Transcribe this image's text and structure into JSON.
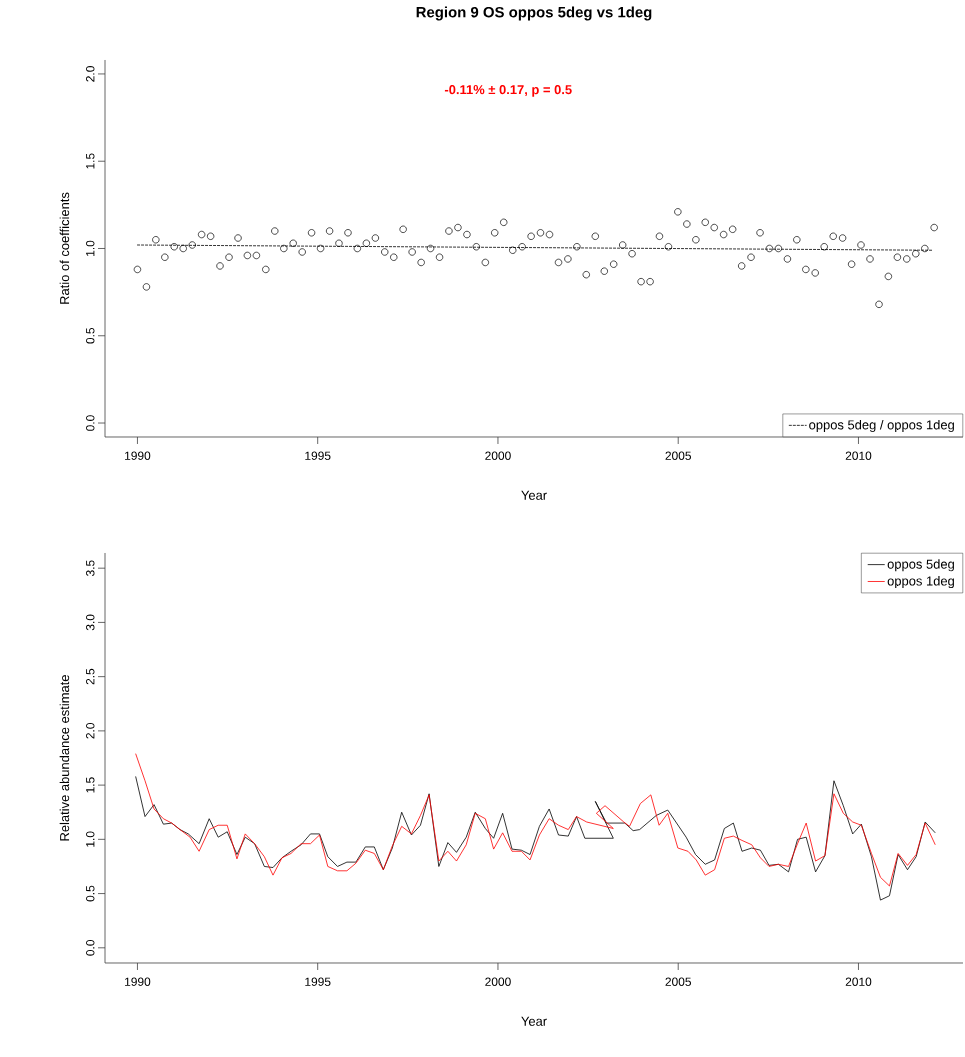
{
  "chart_data": [
    {
      "type": "scatter",
      "title": "Region 9 OS oppos 5deg vs 1deg",
      "xlabel": "Year",
      "ylabel": "Ratio of coefficients",
      "annotations": [
        "-0.11% ± 0.17, p = 0.5"
      ],
      "x": [
        1990.0,
        1990.25,
        1990.51,
        1990.76,
        1991.02,
        1991.27,
        1991.52,
        1991.78,
        1992.03,
        1992.29,
        1992.54,
        1992.79,
        1993.05,
        1993.3,
        1993.56,
        1993.81,
        1994.06,
        1994.32,
        1994.57,
        1994.83,
        1995.08,
        1995.33,
        1995.59,
        1995.84,
        1996.1,
        1996.35,
        1996.6,
        1996.86,
        1997.11,
        1997.37,
        1997.62,
        1997.87,
        1998.13,
        1998.38,
        1998.64,
        1998.89,
        1999.14,
        1999.4,
        1999.65,
        1999.91,
        2000.16,
        2000.41,
        2000.67,
        2000.92,
        2001.18,
        2001.43,
        2001.68,
        2001.94,
        2002.19,
        2002.45,
        2002.7,
        2002.95,
        2003.21,
        2003.46,
        2003.72,
        2003.97,
        2004.22,
        2004.48,
        2004.73,
        2004.99,
        2005.24,
        2005.49,
        2005.75,
        2006.0,
        2006.26,
        2006.51,
        2006.76,
        2007.02,
        2007.27,
        2007.53,
        2007.78,
        2008.03,
        2008.29,
        2008.54,
        2008.8,
        2009.05,
        2009.3,
        2009.56,
        2009.81,
        2010.07,
        2010.32,
        2010.57,
        2010.83,
        2011.08,
        2011.34,
        2011.59,
        2011.84,
        2012.1
      ],
      "series": [
        {
          "color": "#000000",
          "marker": "circle",
          "values": [
            0.88,
            0.78,
            1.05,
            0.95,
            1.01,
            1.0,
            1.02,
            1.08,
            1.07,
            0.9,
            0.95,
            1.06,
            0.96,
            0.96,
            0.88,
            1.1,
            1.0,
            1.03,
            0.98,
            1.09,
            1.0,
            1.1,
            1.03,
            1.09,
            1.0,
            1.03,
            1.06,
            0.98,
            0.95,
            1.11,
            0.98,
            0.92,
            1.0,
            0.95,
            1.1,
            1.12,
            1.08,
            1.01,
            0.92,
            1.09,
            1.15,
            0.99,
            1.01,
            1.07,
            1.09,
            1.08,
            0.92,
            0.94,
            1.01,
            0.85,
            1.07,
            0.87,
            0.91,
            1.02,
            0.97,
            0.81,
            0.81,
            1.07,
            1.01,
            1.21,
            1.14,
            1.05,
            1.15,
            1.12,
            1.08,
            1.11,
            0.9,
            0.95,
            1.09,
            1.0,
            1.0,
            0.94,
            1.05,
            0.88,
            0.86,
            1.01,
            1.07,
            1.06,
            0.91,
            1.02,
            0.94,
            0.68,
            0.84,
            0.95,
            0.94,
            0.97,
            1.0,
            1.12
          ]
        },
        {
          "type": "line",
          "name": "oppos 5deg / oppos 1deg",
          "color": "#000000",
          "line_style": "dotted",
          "x": [
            1990.0,
            2012.03
          ],
          "values": [
            1.02,
            0.99
          ]
        }
      ],
      "xlim": [
        1989.1,
        2012.9
      ],
      "ylim": [
        -0.08,
        2.08
      ],
      "xticks": [
        1990,
        1995,
        2000,
        2005,
        2010
      ],
      "yticks": [
        {
          "value": 0,
          "label": "0.0"
        },
        {
          "value": 0.5,
          "label": "0.5"
        },
        {
          "value": 1,
          "label": "1.0"
        },
        {
          "value": 1.5,
          "label": "1.5"
        },
        {
          "value": 2,
          "label": "2.0"
        }
      ],
      "legend": "bottom right"
    },
    {
      "type": "line",
      "xlabel": "Year",
      "ylabel": "Relative abundance estimate",
      "series": [
        {
          "name": "oppos 5deg",
          "color": "#000000",
          "x": [
            1989.95,
            1990.21,
            1990.46,
            1990.72,
            1990.95,
            1991.18,
            1991.41,
            1991.71,
            1991.99,
            1992.24,
            1992.49,
            1992.76,
            1992.99,
            1993.25,
            1993.52,
            1993.76,
            1994.01,
            1994.26,
            1994.54,
            1994.8,
            1995.05,
            1995.28,
            1995.55,
            1995.81,
            1996.06,
            1996.32,
            1996.57,
            1996.82,
            1997.07,
            1997.33,
            1997.6,
            1997.85,
            1998.09,
            1998.36,
            1998.61,
            1998.85,
            1999.12,
            1999.37,
            1999.65,
            1999.88,
            2000.13,
            2000.39,
            2000.65,
            2000.89,
            2001.15,
            2001.42,
            2001.68,
            2001.95,
            2002.18,
            2002.41,
            2003.2,
            2002.7,
            2003.01,
            2003.52,
            2003.75,
            2003.93,
            2004.39,
            2004.71,
            2005.22,
            2005.48,
            2005.75,
            2006.01,
            2006.28,
            2006.53,
            2006.77,
            2007.04,
            2007.28,
            2007.52,
            2007.78,
            2008.06,
            2008.31,
            2008.55,
            2008.81,
            2009.07,
            2009.32,
            2009.58,
            2009.84,
            2010.08,
            2010.36,
            2010.61,
            2010.86,
            2011.1,
            2011.36,
            2011.6,
            2011.85,
            2012.13
          ],
          "values": [
            1.58,
            1.21,
            1.32,
            1.14,
            1.15,
            1.09,
            1.05,
            0.96,
            1.19,
            1.02,
            1.07,
            0.86,
            1.02,
            0.96,
            0.75,
            0.74,
            0.83,
            0.89,
            0.95,
            1.05,
            1.05,
            0.84,
            0.75,
            0.79,
            0.79,
            0.93,
            0.93,
            0.72,
            0.92,
            1.25,
            1.04,
            1.13,
            1.42,
            0.75,
            0.97,
            0.88,
            1.02,
            1.25,
            1.1,
            1.01,
            1.24,
            0.91,
            0.9,
            0.86,
            1.12,
            1.28,
            1.04,
            1.03,
            1.21,
            1.01,
            1.01,
            1.35,
            1.15,
            1.15,
            1.08,
            1.09,
            1.22,
            1.27,
            1.02,
            0.86,
            0.77,
            0.81,
            1.1,
            1.15,
            0.89,
            0.92,
            0.9,
            0.76,
            0.77,
            0.7,
            1.0,
            1.02,
            0.7,
            0.85,
            1.54,
            1.31,
            1.05,
            1.14,
            0.84,
            0.44,
            0.48,
            0.86,
            0.72,
            0.84,
            1.16,
            1.06
          ]
        },
        {
          "name": "oppos 1deg",
          "color": "#ff0000",
          "x": [
            1989.95,
            1990.21,
            1990.46,
            1990.72,
            1990.95,
            1991.18,
            1991.46,
            1991.71,
            1991.99,
            1992.24,
            1992.49,
            1992.76,
            1992.99,
            1993.25,
            1993.52,
            1993.76,
            1994.01,
            1994.26,
            1994.54,
            1994.8,
            1995.05,
            1995.28,
            1995.55,
            1995.81,
            1996.06,
            1996.32,
            1996.57,
            1996.82,
            1997.07,
            1997.33,
            1997.6,
            1997.85,
            1998.09,
            1998.36,
            1998.61,
            1998.85,
            1999.12,
            1999.37,
            1999.65,
            1999.88,
            2000.13,
            2000.39,
            2000.65,
            2000.89,
            2001.15,
            2001.42,
            2001.68,
            2001.95,
            2002.18,
            2002.46,
            2003.2,
            2002.73,
            2002.97,
            2003.49,
            2003.65,
            2003.95,
            2004.24,
            2004.47,
            2004.71,
            2004.99,
            2005.27,
            2005.5,
            2005.75,
            2006.01,
            2006.28,
            2006.53,
            2006.77,
            2007.04,
            2007.28,
            2007.52,
            2007.78,
            2008.06,
            2008.31,
            2008.55,
            2008.81,
            2009.07,
            2009.32,
            2009.58,
            2009.84,
            2010.08,
            2010.36,
            2010.61,
            2010.86,
            2011.1,
            2011.36,
            2011.6,
            2011.85,
            2012.13
          ],
          "values": [
            1.79,
            1.54,
            1.28,
            1.19,
            1.15,
            1.09,
            1.02,
            0.89,
            1.09,
            1.13,
            1.13,
            0.82,
            1.05,
            0.96,
            0.84,
            0.67,
            0.83,
            0.87,
            0.96,
            0.96,
            1.04,
            0.75,
            0.71,
            0.71,
            0.78,
            0.9,
            0.87,
            0.72,
            0.94,
            1.12,
            1.05,
            1.22,
            1.41,
            0.8,
            0.89,
            0.8,
            0.95,
            1.24,
            1.19,
            0.91,
            1.06,
            0.89,
            0.89,
            0.81,
            1.04,
            1.19,
            1.13,
            1.09,
            1.21,
            1.16,
            1.1,
            1.24,
            1.31,
            1.16,
            1.12,
            1.33,
            1.41,
            1.13,
            1.24,
            0.92,
            0.89,
            0.81,
            0.67,
            0.72,
            1.01,
            1.03,
            0.99,
            0.95,
            0.83,
            0.75,
            0.77,
            0.75,
            0.96,
            1.15,
            0.8,
            0.85,
            1.42,
            1.24,
            1.16,
            1.13,
            0.87,
            0.65,
            0.57,
            0.87,
            0.76,
            0.86,
            1.15,
            0.95
          ]
        }
      ],
      "xlim": [
        1989.1,
        2012.9
      ],
      "ylim": [
        -0.14,
        3.64
      ],
      "xticks": [
        1990,
        1995,
        2000,
        2005,
        2010
      ],
      "yticks": [
        {
          "value": 0,
          "label": "0.0"
        },
        {
          "value": 0.5,
          "label": "0.5"
        },
        {
          "value": 1,
          "label": "1.0"
        },
        {
          "value": 1.5,
          "label": "1.5"
        },
        {
          "value": 2,
          "label": "2.0"
        },
        {
          "value": 2.5,
          "label": "2.5"
        },
        {
          "value": 3,
          "label": "3.0"
        },
        {
          "value": 3.5,
          "label": "3.5"
        }
      ],
      "legend": "top right"
    }
  ]
}
